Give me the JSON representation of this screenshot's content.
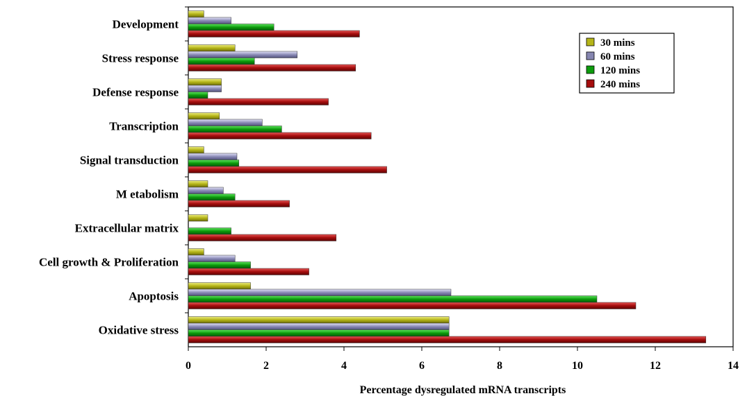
{
  "chart_data": {
    "type": "bar",
    "orientation": "horizontal",
    "categories": [
      "Development",
      "Stress response",
      "Defense response",
      "Transcription",
      "Signal transduction",
      "M etabolism",
      "Extracellular matrix",
      "Cell growth & Proliferation",
      "Apoptosis",
      "Oxidative stress"
    ],
    "series": [
      {
        "name": "30 mins",
        "color": "#b5b519",
        "values": [
          0.4,
          1.2,
          0.85,
          0.8,
          0.4,
          0.5,
          0.5,
          0.4,
          1.6,
          6.7
        ]
      },
      {
        "name": "60 mins",
        "color": "#8686b0",
        "values": [
          1.1,
          2.8,
          0.85,
          1.9,
          1.25,
          0.9,
          0,
          1.2,
          6.75,
          6.7
        ]
      },
      {
        "name": "120 mins",
        "color": "#0d9c0d",
        "values": [
          2.2,
          1.7,
          0.5,
          2.4,
          1.3,
          1.2,
          1.1,
          1.6,
          10.5,
          6.7
        ]
      },
      {
        "name": "240 mins",
        "color": "#a50d0d",
        "values": [
          4.4,
          4.3,
          3.6,
          4.7,
          5.1,
          2.6,
          3.8,
          3.1,
          11.5,
          13.3
        ]
      }
    ],
    "xlabel": "Percentage  dysregulated mRNA transcripts",
    "xlim": [
      0,
      14
    ],
    "xticks": [
      "0",
      "2",
      "4",
      "6",
      "8",
      "10",
      "12",
      "14"
    ],
    "grid": false,
    "legend_position": "top-right"
  }
}
